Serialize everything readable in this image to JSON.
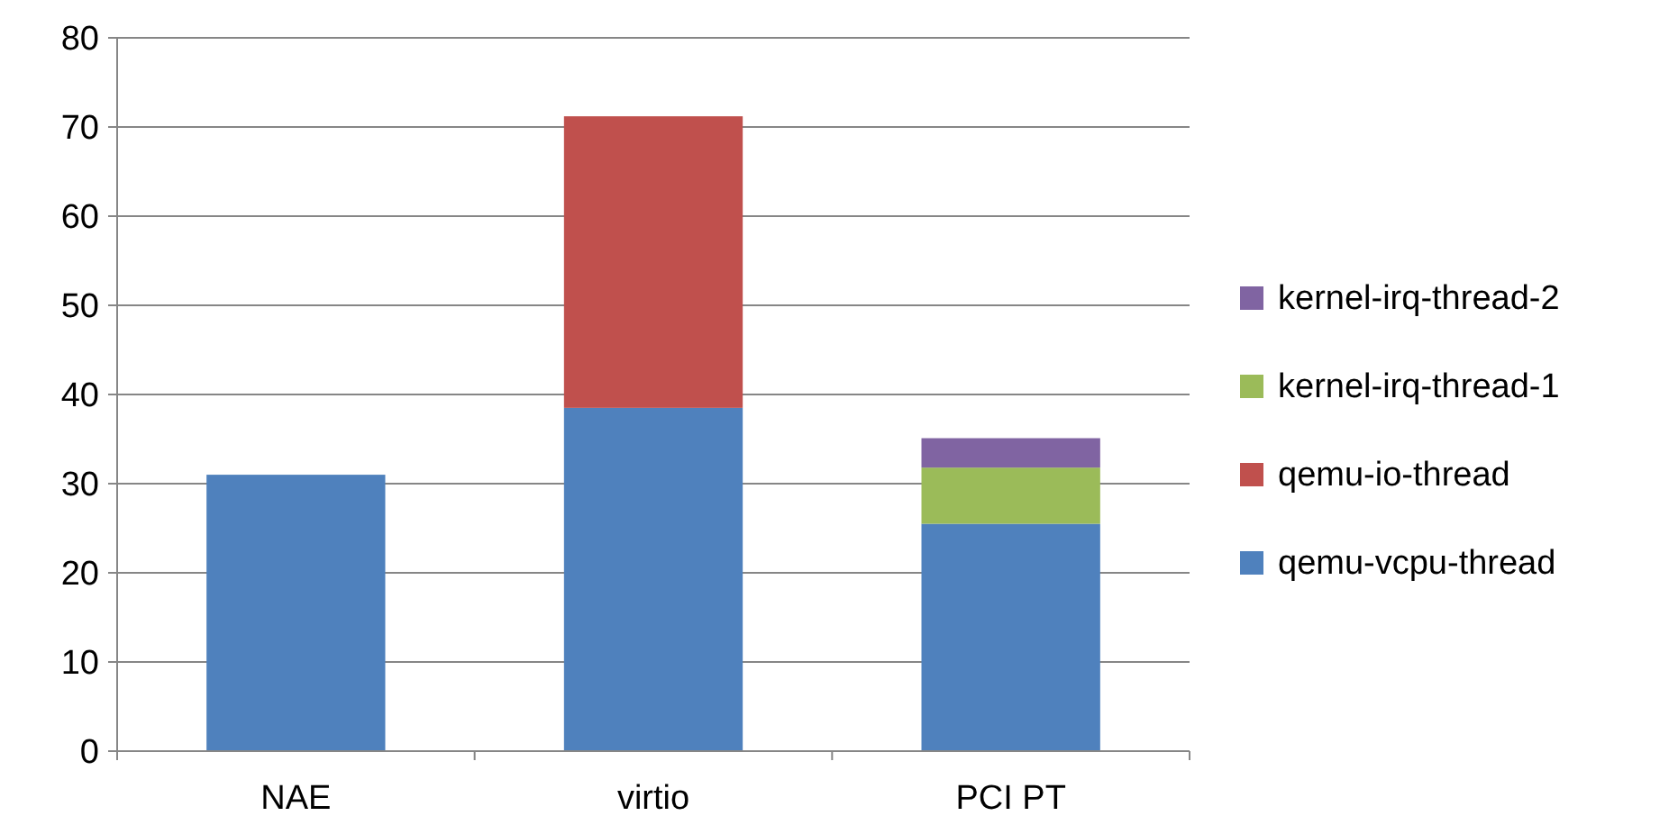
{
  "chart_data": {
    "type": "bar",
    "stacked": true,
    "categories": [
      "NAE",
      "virtio",
      "PCI PT"
    ],
    "series": [
      {
        "name": "qemu-vcpu-thread",
        "color": "#4f81bd",
        "values": [
          31,
          38.5,
          25.5
        ]
      },
      {
        "name": "qemu-io-thread",
        "color": "#c0504d",
        "values": [
          0,
          32.7,
          0
        ]
      },
      {
        "name": "kernel-irq-thread-1",
        "color": "#9bbb59",
        "values": [
          0,
          0,
          6.3
        ]
      },
      {
        "name": "kernel-irq-thread-2",
        "color": "#8064a2",
        "values": [
          0,
          0,
          3.3
        ]
      }
    ],
    "ylim": [
      0,
      80
    ],
    "yticks": [
      0,
      10,
      20,
      30,
      40,
      50,
      60,
      70,
      80
    ],
    "grid": "y",
    "legend": "right"
  }
}
